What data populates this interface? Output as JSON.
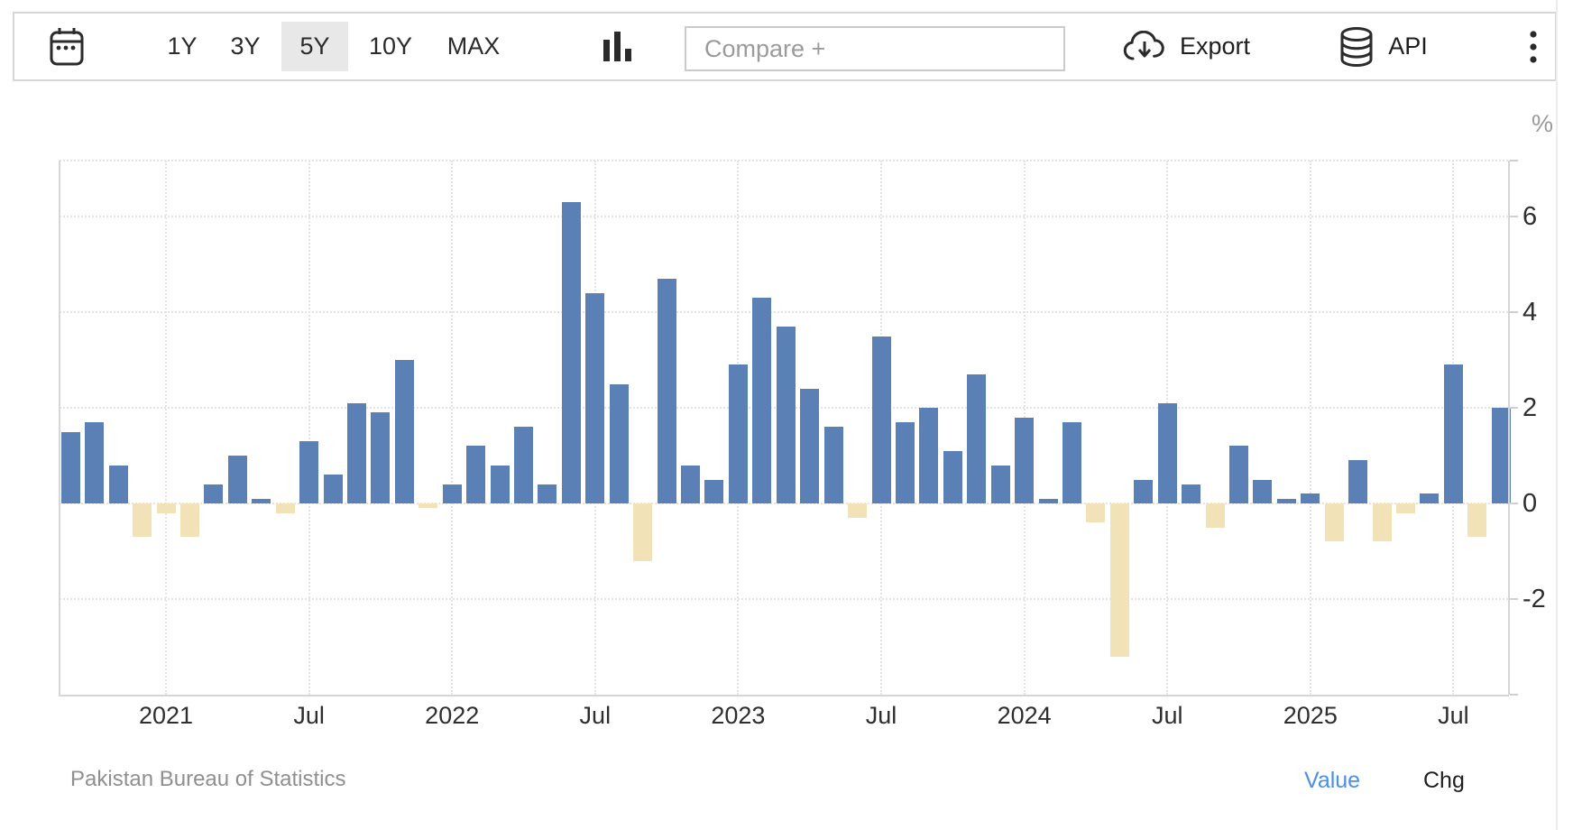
{
  "toolbar": {
    "ranges": [
      {
        "label": "1Y",
        "selected": false
      },
      {
        "label": "3Y",
        "selected": false
      },
      {
        "label": "5Y",
        "selected": true
      },
      {
        "label": "10Y",
        "selected": false
      },
      {
        "label": "MAX",
        "selected": false
      }
    ],
    "compare_placeholder": "Compare +",
    "export_label": "Export",
    "api_label": "API",
    "icons": {
      "left": "calendar-icon",
      "chart_type": "column-chart-icon",
      "export": "cloud-download-icon",
      "api": "database-icon",
      "menu": "kebab-menu-icon"
    },
    "selected_bg_color": "#e8e8e8"
  },
  "chart_data": {
    "type": "bar",
    "title": "",
    "ylabel": "%",
    "grid": true,
    "legend_position": "none",
    "ylim": [
      -4,
      7.2
    ],
    "y_ticks": [
      6,
      4,
      2,
      0,
      -2
    ],
    "x_tick_labels": [
      "2021",
      "Jul",
      "2022",
      "Jul",
      "2023",
      "Jul",
      "2024",
      "Jul",
      "2025",
      "Jul"
    ],
    "x_tick_month_indices": [
      4,
      10,
      16,
      22,
      28,
      34,
      40,
      46,
      52,
      58
    ],
    "months": [
      "2020-09",
      "2020-10",
      "2020-11",
      "2020-12",
      "2021-01",
      "2021-02",
      "2021-03",
      "2021-04",
      "2021-05",
      "2021-06",
      "2021-07",
      "2021-08",
      "2021-09",
      "2021-10",
      "2021-11",
      "2021-12",
      "2022-01",
      "2022-02",
      "2022-03",
      "2022-04",
      "2022-05",
      "2022-06",
      "2022-07",
      "2022-08",
      "2022-09",
      "2022-10",
      "2022-11",
      "2022-12",
      "2023-01",
      "2023-02",
      "2023-03",
      "2023-04",
      "2023-05",
      "2023-06",
      "2023-07",
      "2023-08",
      "2023-09",
      "2023-10",
      "2023-11",
      "2023-12",
      "2024-01",
      "2024-02",
      "2024-03",
      "2024-04",
      "2024-05",
      "2024-06",
      "2024-07",
      "2024-08",
      "2024-09",
      "2024-10",
      "2024-11",
      "2024-12",
      "2025-01",
      "2025-02",
      "2025-03",
      "2025-04",
      "2025-05",
      "2025-06",
      "2025-07",
      "2025-08",
      "2025-09"
    ],
    "values": [
      1.5,
      1.7,
      0.8,
      -0.7,
      -0.2,
      -0.7,
      0.4,
      1.0,
      0.1,
      -0.2,
      1.3,
      0.6,
      2.1,
      1.9,
      3.0,
      -0.1,
      0.4,
      1.2,
      0.8,
      1.6,
      0.4,
      6.3,
      4.4,
      2.5,
      -1.2,
      4.7,
      0.8,
      0.5,
      2.9,
      4.3,
      3.7,
      2.4,
      1.6,
      -0.3,
      3.5,
      1.7,
      2.0,
      1.1,
      2.7,
      0.8,
      1.8,
      0.1,
      1.7,
      -0.4,
      -3.2,
      0.5,
      2.1,
      0.4,
      -0.5,
      1.2,
      0.5,
      0.1,
      0.2,
      -0.8,
      0.9,
      -0.8,
      -0.2,
      0.2,
      2.9,
      -0.7,
      2.0
    ],
    "positive_color": "#5a80b5",
    "negative_color": "#f2e2b8"
  },
  "footer": {
    "source": "Pakistan Bureau of Statistics",
    "value_label": "Value",
    "chg_label": "Chg",
    "value_color": "#4a90e8"
  }
}
